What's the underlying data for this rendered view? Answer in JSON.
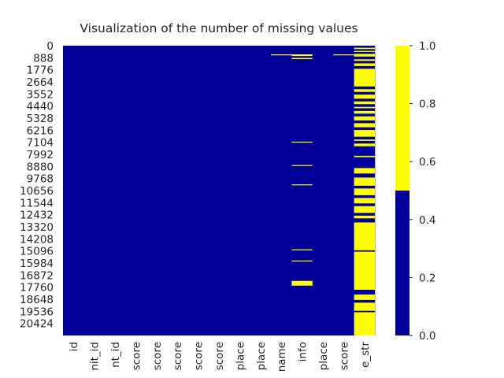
{
  "chart_data": {
    "type": "heatmap",
    "title": "Visualization of the number of missing values",
    "xlabel": "",
    "ylabel": "",
    "colors": {
      "present": "#000099",
      "missing": "#ffff00"
    },
    "row_count": 21312,
    "y_tick_labels": [
      "0",
      "888",
      "1776",
      "2664",
      "3552",
      "4440",
      "5328",
      "6216",
      "7104",
      "7992",
      "8880",
      "9768",
      "10656",
      "11544",
      "12432",
      "13320",
      "14208",
      "15096",
      "15984",
      "16872",
      "17760",
      "18648",
      "19536",
      "20424"
    ],
    "y_tick_values": [
      0,
      888,
      1776,
      2664,
      3552,
      4440,
      5328,
      6216,
      7104,
      7992,
      8880,
      9768,
      10656,
      11544,
      12432,
      13320,
      14208,
      15096,
      15984,
      16872,
      17760,
      18648,
      19536,
      20424
    ],
    "column_labels": [
      "id",
      "nit_id",
      "nt_id",
      "score",
      "score",
      "score",
      "score",
      "score",
      "place",
      "place",
      "name",
      "info",
      "place",
      "score",
      "e_str"
    ],
    "missing_intervals": [
      [],
      [],
      [],
      [],
      [],
      [],
      [],
      [],
      [],
      [],
      [
        [
          640,
          700
        ]
      ],
      [
        [
          640,
          760
        ],
        [
          900,
          990
        ],
        [
          7060,
          7110
        ],
        [
          8780,
          8840
        ],
        [
          10200,
          10260
        ],
        [
          14980,
          15050
        ],
        [
          15800,
          15870
        ],
        [
          17300,
          17650
        ]
      ],
      [],
      [
        [
          640,
          700
        ]
      ],
      [
        [
          150,
          250
        ],
        [
          380,
          460
        ],
        [
          600,
          800
        ],
        [
          1000,
          1120
        ],
        [
          1300,
          1500
        ],
        [
          1700,
          3000
        ],
        [
          3200,
          3400
        ],
        [
          3600,
          3900
        ],
        [
          4100,
          4300
        ],
        [
          4500,
          4600
        ],
        [
          4800,
          5000
        ],
        [
          5200,
          5500
        ],
        [
          5700,
          6000
        ],
        [
          6200,
          6700
        ],
        [
          6900,
          7000
        ],
        [
          7200,
          7400
        ],
        [
          8100,
          8200
        ],
        [
          9000,
          9400
        ],
        [
          9700,
          10300
        ],
        [
          10500,
          11000
        ],
        [
          11200,
          11600
        ],
        [
          11800,
          12300
        ],
        [
          12500,
          12700
        ],
        [
          13000,
          15050
        ],
        [
          15150,
          17950
        ],
        [
          18300,
          18700
        ],
        [
          18900,
          19500
        ],
        [
          19600,
          21312
        ]
      ]
    ],
    "colorbar": {
      "ticks": [
        "0.0",
        "0.2",
        "0.4",
        "0.6",
        "0.8",
        "1.0"
      ],
      "tick_values": [
        0.0,
        0.2,
        0.4,
        0.6,
        0.8,
        1.0
      ],
      "range": [
        0.0,
        1.0
      ]
    }
  }
}
